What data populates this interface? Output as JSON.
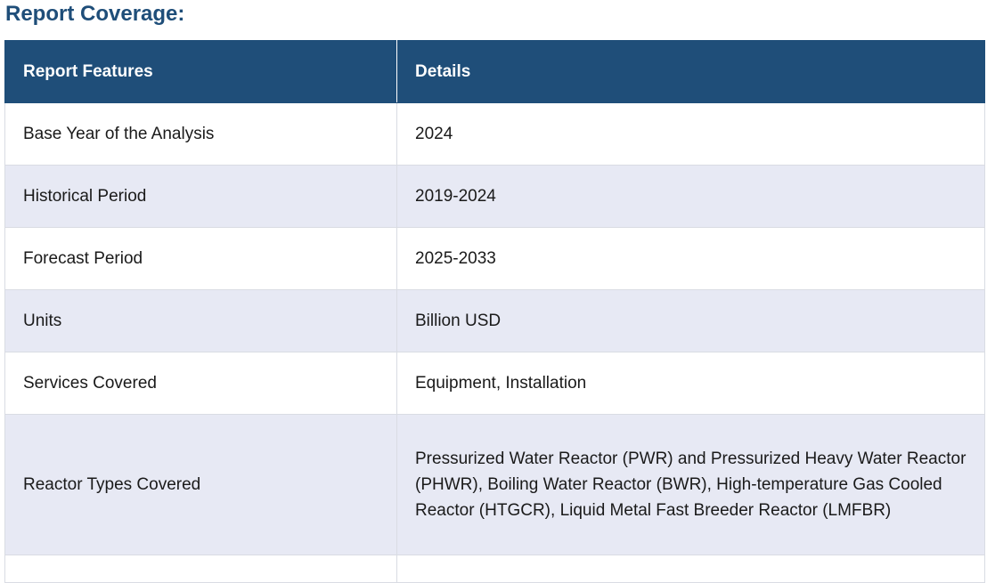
{
  "section": {
    "title": "Report Coverage:"
  },
  "table": {
    "headers": [
      "Report Features",
      "Details"
    ],
    "rows": [
      {
        "feature": "Base Year of the Analysis",
        "details": "2024"
      },
      {
        "feature": "Historical Period",
        "details": "2019-2024"
      },
      {
        "feature": "Forecast Period",
        "details": "2025-2033"
      },
      {
        "feature": "Units",
        "details": "Billion USD"
      },
      {
        "feature": "Services Covered",
        "details": "Equipment, Installation"
      },
      {
        "feature": "Reactor Types Covered",
        "details": "Pressurized Water Reactor (PWR) and Pressurized Heavy Water Reactor (PHWR), Boiling Water Reactor (BWR), High-temperature Gas Cooled Reactor (HTGCR), Liquid Metal Fast Breeder Reactor (LMFBR)"
      }
    ]
  },
  "colors": {
    "header_bg": "#1f4e79",
    "heading_text": "#1f4e79",
    "row_alt_bg": "#e7e9f4"
  }
}
